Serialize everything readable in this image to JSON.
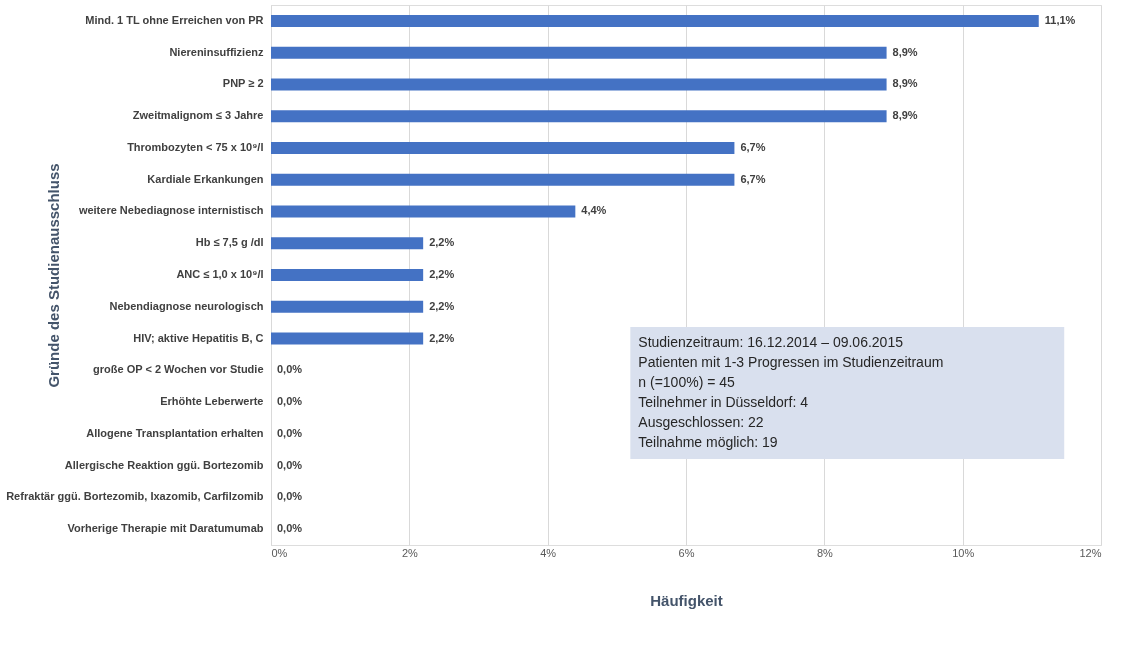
{
  "chart_data": {
    "type": "bar",
    "orientation": "horizontal",
    "xlabel": "Häufigkeit",
    "ylabel": "Gründe des Studienausschluss",
    "categories": [
      "Mind. 1 TL ohne Erreichen von PR",
      "Niereninsuffizienz",
      "PNP ≥ 2",
      "Zweitmalignom ≤ 3 Jahre",
      "Thrombozyten < 75 x 10⁹/l",
      "Kardiale Erkankungen",
      "weitere Nebediagnose internistisch",
      "Hb ≤ 7,5 g /dl",
      "ANC ≤ 1,0 x 10⁹/l",
      "Nebendiagnose neurologisch",
      "HIV; aktive Hepatitis B, C",
      "große OP < 2 Wochen vor Studie",
      "Erhöhte Leberwerte",
      "Allogene Transplantation erhalten",
      "Allergische Reaktion ggü. Bortezomib",
      "Refraktär ggü. Bortezomib, Ixazomib, Carfilzomib",
      "Vorherige Therapie mit Daratumumab"
    ],
    "values": [
      11.1,
      8.9,
      8.9,
      8.9,
      6.7,
      6.7,
      4.4,
      2.2,
      2.2,
      2.2,
      2.2,
      0,
      0,
      0,
      0,
      0,
      0
    ],
    "value_labels": [
      "11,1%",
      "8,9%",
      "8,9%",
      "8,9%",
      "6,7%",
      "6,7%",
      "4,4%",
      "2,2%",
      "2,2%",
      "2,2%",
      "2,2%",
      "0,0%",
      "0,0%",
      "0,0%",
      "0,0%",
      "0,0%",
      "0,0%"
    ],
    "color": "#4472c4",
    "xlim": [
      0,
      12
    ],
    "xticks": [
      {
        "value": 0,
        "label": "0%"
      },
      {
        "value": 2,
        "label": "2%"
      },
      {
        "value": 4,
        "label": "4%"
      },
      {
        "value": 6,
        "label": "6%"
      },
      {
        "value": 8,
        "label": "8%"
      },
      {
        "value": 10,
        "label": "10%"
      },
      {
        "value": 12,
        "label": "12%"
      }
    ],
    "grid": "x",
    "annotations": [
      "Studienzeitraum: 16.12.2014 – 09.06.2015",
      "Patienten mit 1-3 Progressen im Studienzeitraum",
      "n (=100%) = 45",
      "Teilnehmer in Düsseldorf: 4",
      "Ausgeschlossen: 22",
      "Teilnahme möglich: 19"
    ]
  }
}
